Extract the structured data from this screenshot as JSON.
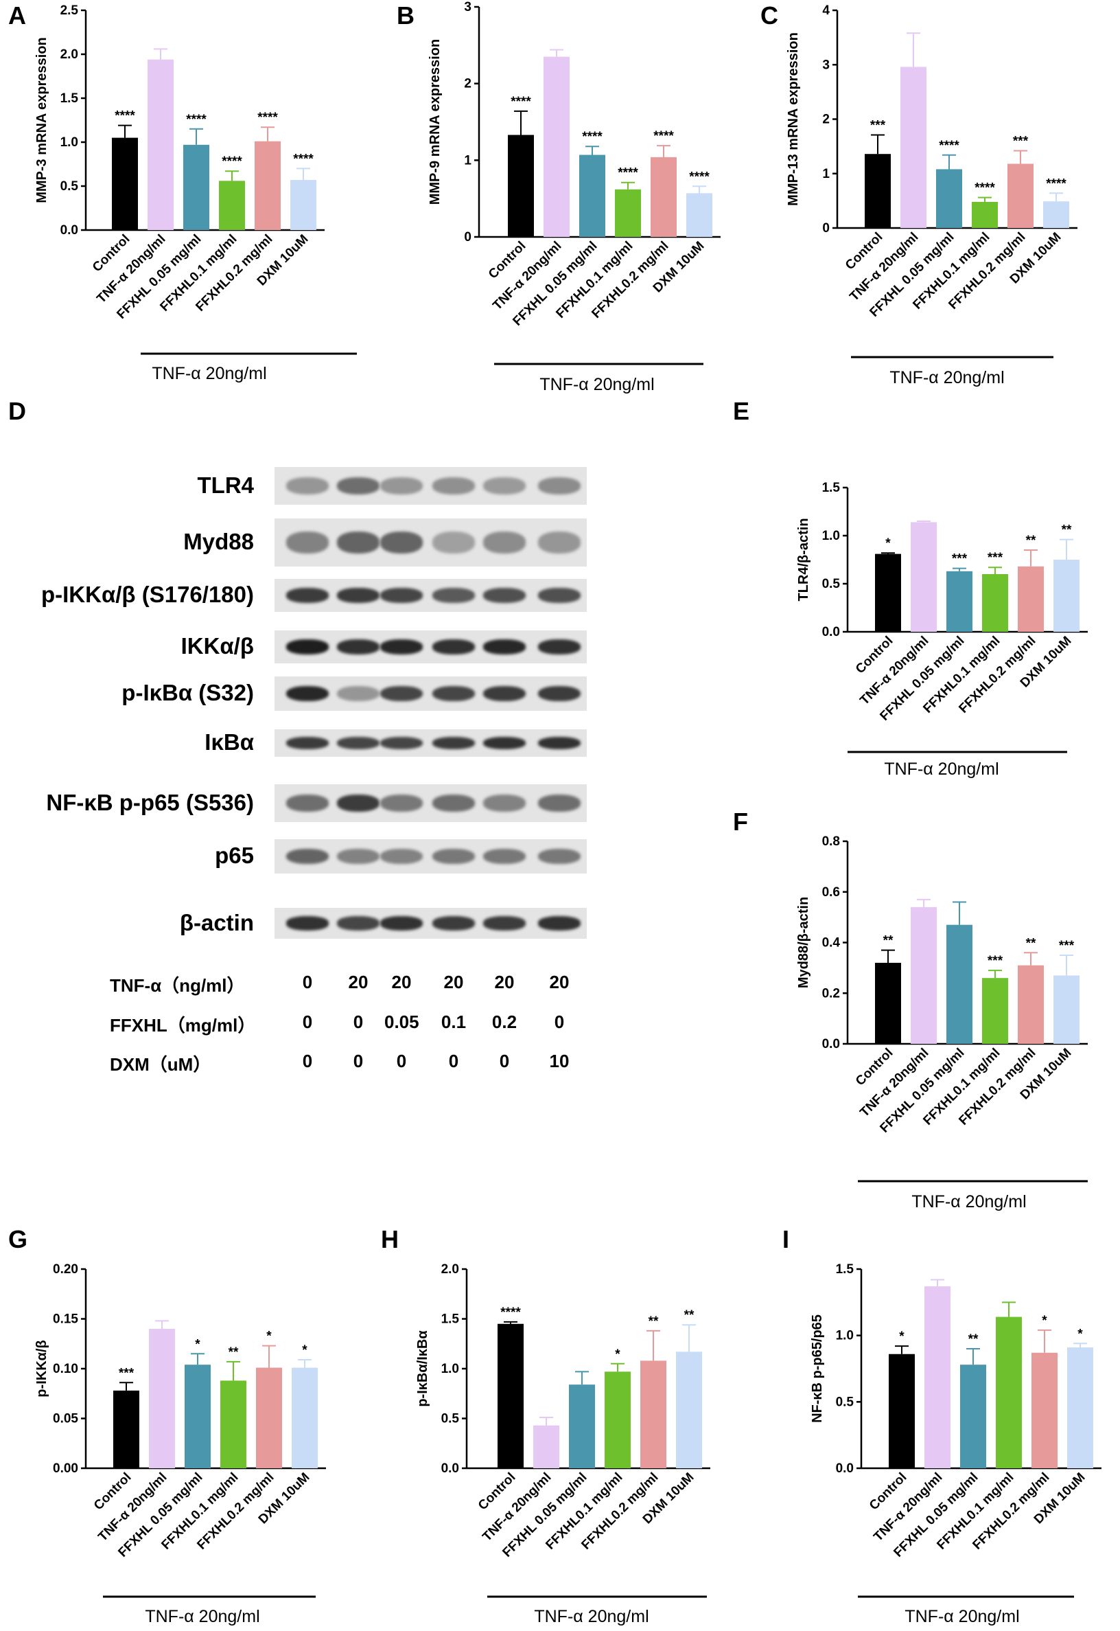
{
  "colors": [
    "#000000",
    "#e6c8f5",
    "#4a96ac",
    "#6ec02c",
    "#e69a9a",
    "#c8dcf8"
  ],
  "categories": [
    "Control",
    "TNF-α 20ng/ml",
    "FFXHL 0.05 mg/ml",
    "FFXHL0.1 mg/ml",
    "FFXHL0.2 mg/ml",
    "DXM 10uM"
  ],
  "categories_variant": [
    "Control",
    "TNF-α 20ng/ml",
    "FFXHL 0.05 mg/ml",
    "FFXHL0.1 mg/ml",
    "FFXHL0.2 mg/ml",
    "DXM 10uM"
  ],
  "group_label": "TNF-α 20ng/ml",
  "chart_data": [
    {
      "panel": "A",
      "type": "bar",
      "ylabel": "MMP-3 mRNA expression",
      "ylim": [
        0,
        2.5
      ],
      "yticks": [
        "0.0",
        "0.5",
        "1.0",
        "1.5",
        "2.0",
        "2.5"
      ],
      "values": [
        1.05,
        1.94,
        0.97,
        0.56,
        1.01,
        0.57
      ],
      "errors": [
        0.14,
        0.12,
        0.18,
        0.11,
        0.16,
        0.13
      ],
      "sig": [
        "****",
        "",
        "****",
        "****",
        "****",
        "****"
      ]
    },
    {
      "panel": "B",
      "type": "bar",
      "ylabel": "MMP-9 mRNA expression",
      "ylim": [
        0,
        3
      ],
      "yticks": [
        "0",
        "1",
        "2",
        "3"
      ],
      "values": [
        1.33,
        2.35,
        1.07,
        0.62,
        1.04,
        0.57
      ],
      "errors": [
        0.31,
        0.09,
        0.11,
        0.09,
        0.15,
        0.09
      ],
      "sig": [
        "****",
        "",
        "****",
        "****",
        "****",
        "****"
      ]
    },
    {
      "panel": "C",
      "type": "bar",
      "ylabel": "MMP-13 mRNA expression",
      "ylim": [
        0,
        4
      ],
      "yticks": [
        "0",
        "1",
        "2",
        "3",
        "4"
      ],
      "values": [
        1.36,
        2.96,
        1.08,
        0.48,
        1.18,
        0.49
      ],
      "errors": [
        0.35,
        0.62,
        0.26,
        0.08,
        0.24,
        0.15
      ],
      "sig": [
        "***",
        "",
        "****",
        "****",
        "***",
        "****"
      ]
    },
    {
      "panel": "E",
      "type": "bar",
      "ylabel": "TLR4/β-actin",
      "ylim": [
        0,
        1.5
      ],
      "yticks": [
        "0.0",
        "0.5",
        "1.0",
        "1.5"
      ],
      "values": [
        0.81,
        1.14,
        0.63,
        0.6,
        0.68,
        0.75
      ],
      "errors": [
        0.01,
        0.01,
        0.03,
        0.07,
        0.17,
        0.21
      ],
      "sig": [
        "*",
        "",
        "***",
        "***",
        "**",
        "**"
      ]
    },
    {
      "panel": "F",
      "type": "bar",
      "ylabel": "Myd88/β-actin",
      "ylim": [
        0,
        0.8
      ],
      "yticks": [
        "0.0",
        "0.2",
        "0.4",
        "0.6",
        "0.8"
      ],
      "values": [
        0.32,
        0.54,
        0.47,
        0.26,
        0.31,
        0.27
      ],
      "errors": [
        0.05,
        0.03,
        0.09,
        0.03,
        0.05,
        0.08
      ],
      "sig": [
        "**",
        "",
        "",
        "***",
        "**",
        "***"
      ]
    },
    {
      "panel": "G",
      "type": "bar",
      "ylabel": "p-IKKα/β",
      "ylim": [
        0,
        0.2
      ],
      "yticks": [
        "0.00",
        "0.05",
        "0.10",
        "0.15",
        "0.20"
      ],
      "values": [
        0.078,
        0.14,
        0.104,
        0.088,
        0.101,
        0.101
      ],
      "errors": [
        0.008,
        0.008,
        0.011,
        0.019,
        0.022,
        0.008
      ],
      "sig": [
        "***",
        "",
        "*",
        "**",
        "*",
        "*"
      ]
    },
    {
      "panel": "H",
      "type": "bar",
      "ylabel": "p-IκBα/IκBα",
      "ylim": [
        0,
        2.0
      ],
      "yticks": [
        "0.0",
        "0.5",
        "1.0",
        "1.5",
        "2.0"
      ],
      "values": [
        1.45,
        0.43,
        0.84,
        0.97,
        1.08,
        1.17
      ],
      "errors": [
        0.02,
        0.08,
        0.13,
        0.08,
        0.3,
        0.27
      ],
      "sig": [
        "****",
        "",
        "",
        "*",
        "**",
        "**"
      ]
    },
    {
      "panel": "I",
      "type": "bar",
      "ylabel": "NF-κB p-p65/p65",
      "ylim": [
        0,
        1.5
      ],
      "yticks": [
        "0.0",
        "0.5",
        "1.0",
        "1.5"
      ],
      "values": [
        0.86,
        1.37,
        0.78,
        1.14,
        0.87,
        0.91
      ],
      "errors": [
        0.06,
        0.05,
        0.12,
        0.11,
        0.17,
        0.03
      ],
      "sig": [
        "*",
        "",
        "**",
        "",
        "*",
        "*"
      ]
    }
  ],
  "blot": {
    "letter": "D",
    "rows": [
      "TLR4",
      "Myd88",
      "p-IKKα/β (S176/180)",
      "IKKα/β",
      "p-IκBα (S32)",
      "IκBα",
      "NF-κB p-p65 (S536)",
      "p65",
      "β-actin"
    ],
    "intensity": [
      [
        0.35,
        0.55,
        0.35,
        0.38,
        0.33,
        0.4
      ],
      [
        0.45,
        0.6,
        0.6,
        0.3,
        0.4,
        0.35
      ],
      [
        0.8,
        0.8,
        0.75,
        0.65,
        0.7,
        0.7
      ],
      [
        0.95,
        0.85,
        0.9,
        0.85,
        0.9,
        0.85
      ],
      [
        0.9,
        0.35,
        0.75,
        0.75,
        0.8,
        0.8
      ],
      [
        0.8,
        0.75,
        0.75,
        0.8,
        0.85,
        0.85
      ],
      [
        0.55,
        0.8,
        0.5,
        0.55,
        0.45,
        0.55
      ],
      [
        0.6,
        0.45,
        0.45,
        0.5,
        0.5,
        0.5
      ],
      [
        0.85,
        0.75,
        0.85,
        0.8,
        0.8,
        0.85
      ]
    ],
    "conditions": [
      {
        "label": "TNF-α（ng/ml）",
        "values": [
          "0",
          "20",
          "20",
          "20",
          "20",
          "20"
        ]
      },
      {
        "label": "FFXHL（mg/ml）",
        "values": [
          "0",
          "0",
          "0.05",
          "0.1",
          "0.2",
          "0"
        ]
      },
      {
        "label": "DXM（uM）",
        "values": [
          "0",
          "0",
          "0",
          "0",
          "0",
          "10"
        ]
      }
    ]
  }
}
